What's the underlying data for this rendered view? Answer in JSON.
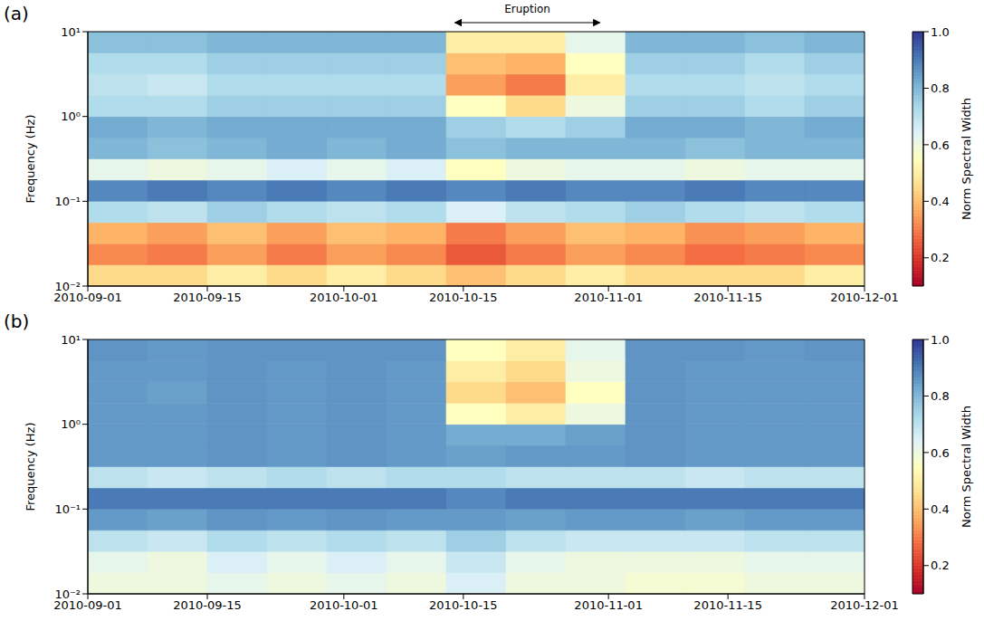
{
  "chart_data": [
    {
      "type": "heatmap",
      "panel": "(a)",
      "ylabel": "Frequency (Hz)",
      "log": "y",
      "xlim": [
        "2010-09-01",
        "2010-12-01"
      ],
      "xticks": [
        "2010-09-01",
        "2010-09-15",
        "2010-10-01",
        "2010-10-15",
        "2010-11-01",
        "2010-11-15",
        "2010-12-01"
      ],
      "ylim": [
        0.01,
        10
      ],
      "yticks": [
        {
          "value": 0.01,
          "label": "10⁻²"
        },
        {
          "value": 0.1,
          "label": "10⁻¹"
        },
        {
          "value": 1,
          "label": "10⁰"
        },
        {
          "value": 10,
          "label": "10¹"
        }
      ],
      "x_edges": [
        "2010-09-01",
        "2010-09-08",
        "2010-09-15",
        "2010-09-22",
        "2010-09-29",
        "2010-10-06",
        "2010-10-13",
        "2010-10-20",
        "2010-10-27",
        "2010-11-03",
        "2010-11-10",
        "2010-11-17",
        "2010-11-24",
        "2010-12-01"
      ],
      "y_edges": [
        0.01,
        0.0178,
        0.0316,
        0.0562,
        0.1,
        0.178,
        0.316,
        0.562,
        1,
        1.78,
        3.16,
        5.62,
        10
      ],
      "cells": [
        [
          0.45,
          0.45,
          0.5,
          0.45,
          0.5,
          0.45,
          0.4,
          0.45,
          0.5,
          0.45,
          0.45,
          0.45,
          0.5
        ],
        [
          0.32,
          0.3,
          0.35,
          0.3,
          0.35,
          0.32,
          0.25,
          0.3,
          0.35,
          0.32,
          0.28,
          0.3,
          0.32
        ],
        [
          0.38,
          0.35,
          0.4,
          0.35,
          0.4,
          0.38,
          0.3,
          0.35,
          0.4,
          0.38,
          0.33,
          0.35,
          0.38
        ],
        [
          0.72,
          0.7,
          0.75,
          0.72,
          0.7,
          0.72,
          0.65,
          0.7,
          0.72,
          0.75,
          0.72,
          0.7,
          0.72
        ],
        [
          0.88,
          0.9,
          0.88,
          0.9,
          0.88,
          0.9,
          0.88,
          0.9,
          0.88,
          0.88,
          0.9,
          0.88,
          0.88
        ],
        [
          0.62,
          0.6,
          0.62,
          0.65,
          0.62,
          0.65,
          0.55,
          0.6,
          0.62,
          0.62,
          0.6,
          0.62,
          0.62
        ],
        [
          0.8,
          0.78,
          0.8,
          0.82,
          0.8,
          0.82,
          0.78,
          0.8,
          0.8,
          0.8,
          0.78,
          0.8,
          0.8
        ],
        [
          0.82,
          0.8,
          0.82,
          0.82,
          0.82,
          0.82,
          0.75,
          0.72,
          0.75,
          0.82,
          0.82,
          0.8,
          0.82
        ],
        [
          0.72,
          0.72,
          0.75,
          0.75,
          0.75,
          0.75,
          0.55,
          0.45,
          0.6,
          0.75,
          0.75,
          0.72,
          0.75
        ],
        [
          0.7,
          0.68,
          0.72,
          0.72,
          0.72,
          0.72,
          0.35,
          0.3,
          0.5,
          0.72,
          0.72,
          0.7,
          0.72
        ],
        [
          0.72,
          0.72,
          0.75,
          0.75,
          0.75,
          0.75,
          0.4,
          0.38,
          0.55,
          0.75,
          0.75,
          0.72,
          0.75
        ],
        [
          0.78,
          0.78,
          0.8,
          0.8,
          0.8,
          0.8,
          0.5,
          0.5,
          0.62,
          0.8,
          0.8,
          0.78,
          0.8
        ]
      ],
      "colorbar": {
        "label": "Norm Spectral Width",
        "range": [
          0.1,
          1
        ],
        "ticks": [
          0.2,
          0.4,
          0.6,
          0.8,
          {
            "value": 1,
            "label": "1.0"
          }
        ]
      },
      "annotations": [
        {
          "text": "Eruption",
          "x_start": "2010-10-14",
          "x_end": "2010-10-31"
        }
      ]
    },
    {
      "type": "heatmap",
      "panel": "(b)",
      "ylabel": "Frequency (Hz)",
      "log": "y",
      "xlim": [
        "2010-09-01",
        "2010-12-01"
      ],
      "xticks": [
        "2010-09-01",
        "2010-09-15",
        "2010-10-01",
        "2010-10-15",
        "2010-11-01",
        "2010-11-15",
        "2010-12-01"
      ],
      "ylim": [
        0.01,
        10
      ],
      "yticks": [
        {
          "value": 0.01,
          "label": "10⁻²"
        },
        {
          "value": 0.1,
          "label": "10⁻¹"
        },
        {
          "value": 1,
          "label": "10⁰"
        },
        {
          "value": 10,
          "label": "10¹"
        }
      ],
      "x_edges": [
        "2010-09-01",
        "2010-09-08",
        "2010-09-15",
        "2010-09-22",
        "2010-09-29",
        "2010-10-06",
        "2010-10-13",
        "2010-10-20",
        "2010-10-27",
        "2010-11-03",
        "2010-11-10",
        "2010-11-17",
        "2010-11-24",
        "2010-12-01"
      ],
      "y_edges": [
        0.01,
        0.0178,
        0.0316,
        0.0562,
        0.1,
        0.178,
        0.316,
        0.562,
        1,
        1.78,
        3.16,
        5.62,
        10
      ],
      "cells": [
        [
          0.6,
          0.6,
          0.62,
          0.6,
          0.62,
          0.6,
          0.65,
          0.6,
          0.6,
          0.58,
          0.58,
          0.6,
          0.6
        ],
        [
          0.62,
          0.6,
          0.65,
          0.62,
          0.65,
          0.62,
          0.68,
          0.62,
          0.6,
          0.6,
          0.6,
          0.62,
          0.62
        ],
        [
          0.7,
          0.68,
          0.72,
          0.7,
          0.72,
          0.7,
          0.75,
          0.7,
          0.68,
          0.68,
          0.68,
          0.7,
          0.7
        ],
        [
          0.85,
          0.84,
          0.86,
          0.85,
          0.86,
          0.85,
          0.85,
          0.84,
          0.85,
          0.85,
          0.84,
          0.85,
          0.85
        ],
        [
          0.9,
          0.9,
          0.9,
          0.9,
          0.9,
          0.9,
          0.88,
          0.9,
          0.9,
          0.9,
          0.9,
          0.9,
          0.9
        ],
        [
          0.7,
          0.68,
          0.7,
          0.72,
          0.7,
          0.72,
          0.72,
          0.7,
          0.7,
          0.7,
          0.68,
          0.7,
          0.7
        ],
        [
          0.85,
          0.85,
          0.86,
          0.85,
          0.86,
          0.85,
          0.84,
          0.85,
          0.85,
          0.86,
          0.85,
          0.85,
          0.85
        ],
        [
          0.85,
          0.85,
          0.86,
          0.85,
          0.86,
          0.85,
          0.82,
          0.82,
          0.84,
          0.86,
          0.85,
          0.85,
          0.85
        ],
        [
          0.85,
          0.85,
          0.86,
          0.85,
          0.86,
          0.85,
          0.55,
          0.5,
          0.6,
          0.86,
          0.85,
          0.85,
          0.85
        ],
        [
          0.85,
          0.84,
          0.86,
          0.85,
          0.86,
          0.85,
          0.45,
          0.4,
          0.55,
          0.86,
          0.85,
          0.85,
          0.85
        ],
        [
          0.85,
          0.85,
          0.86,
          0.85,
          0.86,
          0.85,
          0.5,
          0.45,
          0.6,
          0.86,
          0.85,
          0.85,
          0.85
        ],
        [
          0.86,
          0.85,
          0.86,
          0.86,
          0.86,
          0.86,
          0.55,
          0.5,
          0.62,
          0.86,
          0.86,
          0.85,
          0.86
        ]
      ],
      "colorbar": {
        "label": "Norm Spectral Width",
        "range": [
          0.1,
          1
        ],
        "ticks": [
          0.2,
          0.4,
          0.6,
          0.8,
          {
            "value": 1,
            "label": "1.0"
          }
        ]
      }
    }
  ]
}
